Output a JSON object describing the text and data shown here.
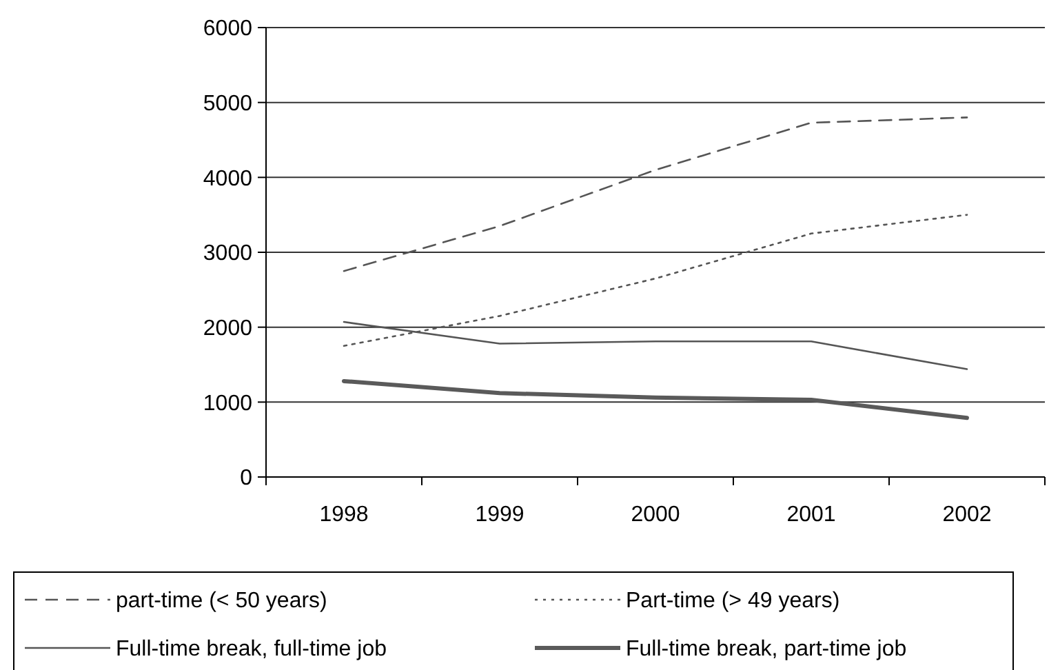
{
  "chart_data": {
    "type": "line",
    "categories": [
      "1998",
      "1999",
      "2000",
      "2001",
      "2002"
    ],
    "series": [
      {
        "name": "part-time (< 50 years)",
        "color": "#555555",
        "line_style": "dashed",
        "values": [
          2750,
          3350,
          4100,
          4730,
          4800
        ]
      },
      {
        "name": "Part-time (> 49 years)",
        "color": "#555555",
        "line_style": "dotted",
        "values": [
          1750,
          2150,
          2650,
          3250,
          3500
        ]
      },
      {
        "name": "Full-time break, full-time job",
        "color": "#555555",
        "line_style": "solid",
        "values": [
          2070,
          1780,
          1810,
          1810,
          1440
        ]
      },
      {
        "name": "Full-time break, part-time job",
        "color": "#5a5a5a",
        "line_style": "solid",
        "values": [
          1280,
          1120,
          1060,
          1030,
          790
        ]
      }
    ],
    "ylim": [
      0,
      6000
    ],
    "yticks": [
      0,
      1000,
      2000,
      3000,
      4000,
      5000,
      6000
    ],
    "grid": "y",
    "legend": "bottom",
    "marker": "none"
  }
}
